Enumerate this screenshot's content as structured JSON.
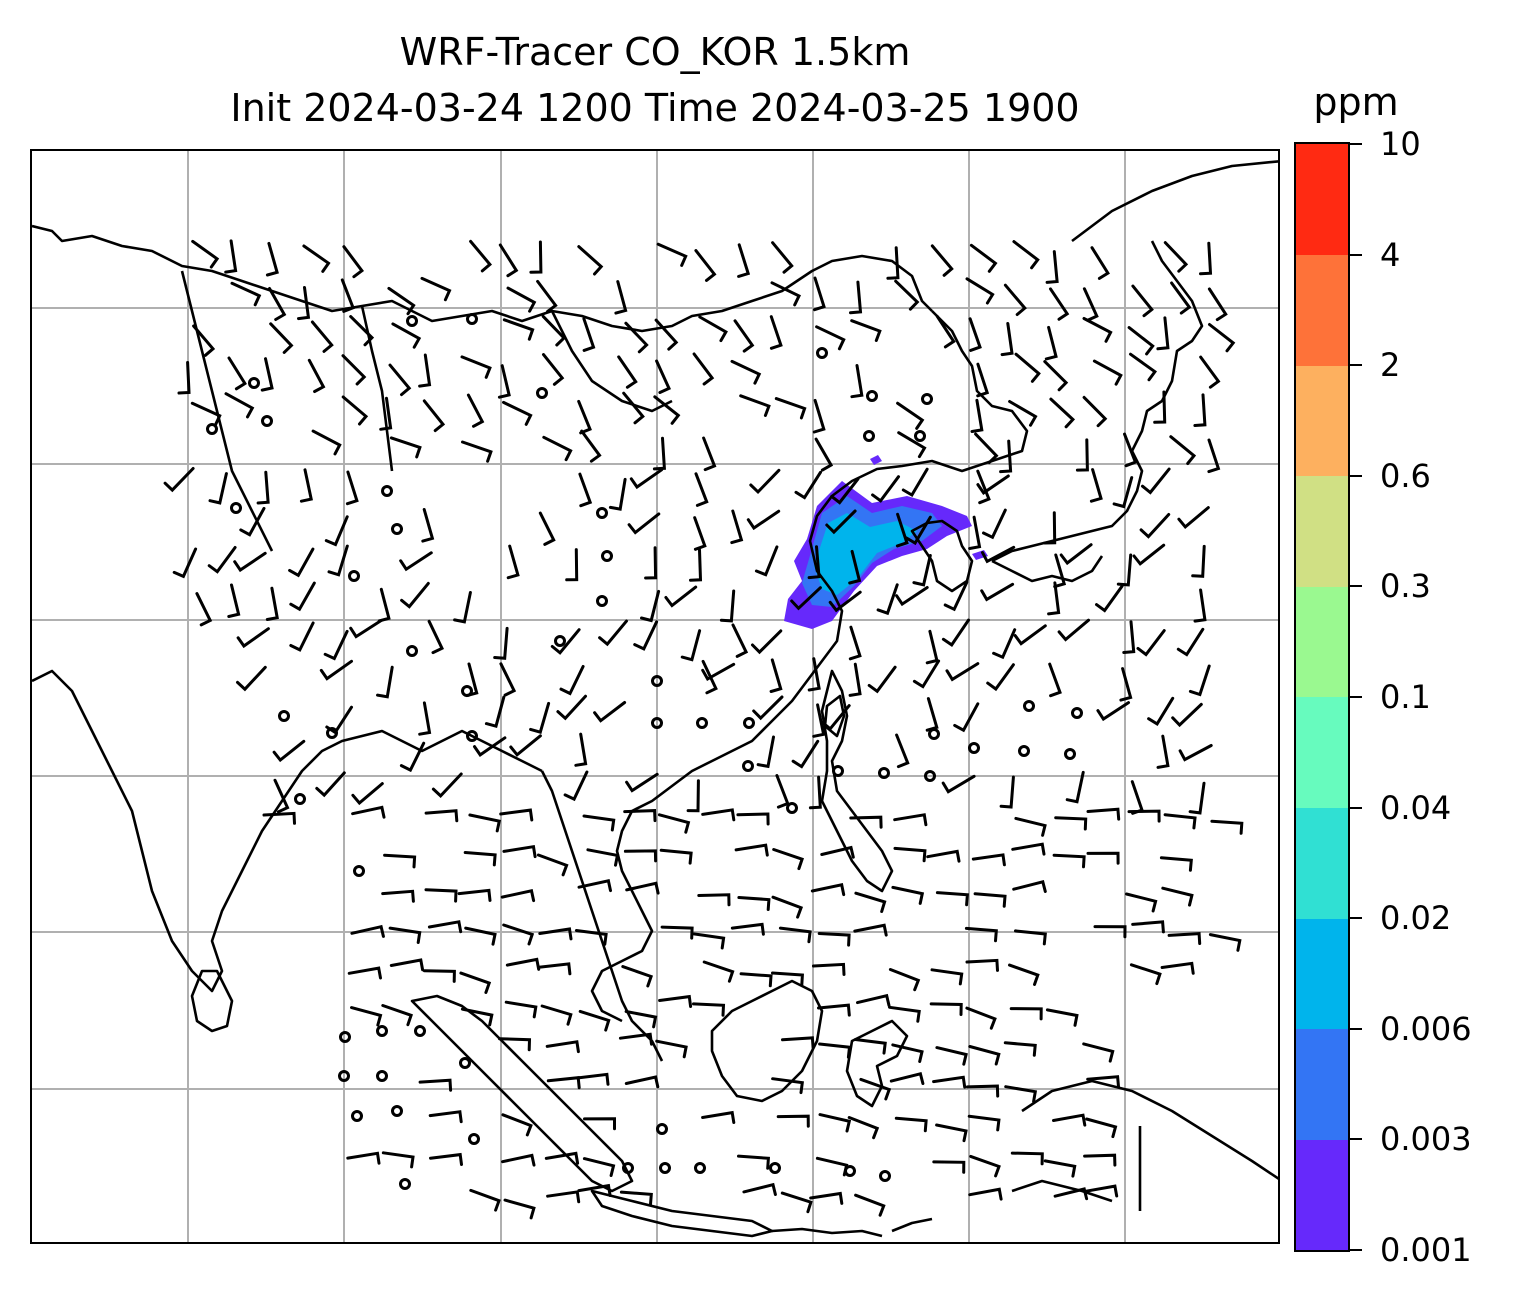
{
  "title_line1": "WRF-Tracer CO_KOR 1.5km",
  "title_line2": "Init 2024-03-24 1200 Time 2024-03-25 1900",
  "colorbar": {
    "unit": "ppm",
    "levels": [
      "0.001",
      "0.003",
      "0.006",
      "0.02",
      "0.04",
      "0.1",
      "0.3",
      "0.6",
      "2",
      "4",
      "10"
    ],
    "colors": [
      "#6629fb",
      "#3375f4",
      "#00b4ec",
      "#30e0d3",
      "#67fbbe",
      "#9af990",
      "#d0e084",
      "#fdb05f",
      "#fe7239",
      "#ff2a12"
    ]
  },
  "map": {
    "grid_color": "#b0b0b0",
    "coastline_color": "#000000",
    "tracer_plume_levels": [
      "0.001",
      "0.003",
      "0.006"
    ]
  }
}
